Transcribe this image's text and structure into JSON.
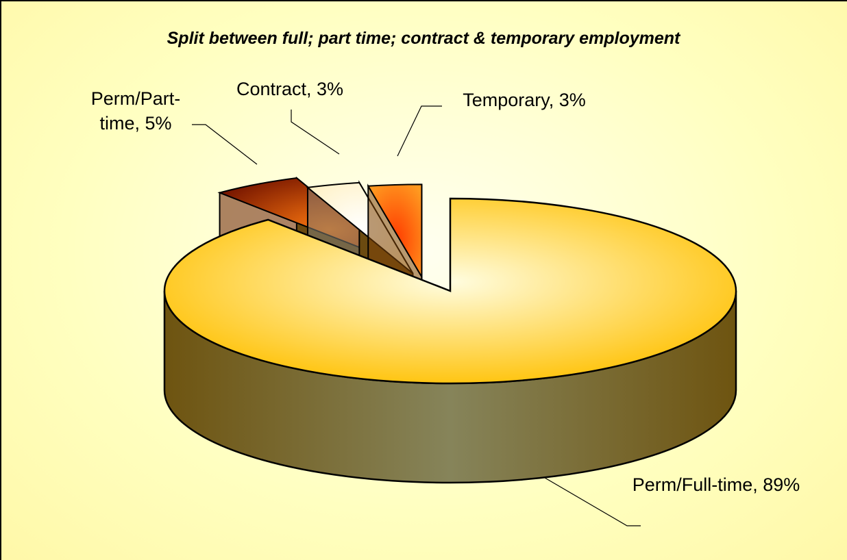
{
  "chart_data": {
    "type": "pie",
    "title": "Split between full; part time; contract & temporary employment",
    "values": [
      89,
      5,
      3,
      3
    ],
    "value_labels": [
      "Perm/Full-time, 89%",
      "Perm/Part-time, 5%",
      "Contract, 3%",
      "Temporary, 3%"
    ],
    "colors": [
      "#ffc21a",
      "#d23a00",
      "#fffbe8",
      "#ff8a10"
    ]
  }
}
